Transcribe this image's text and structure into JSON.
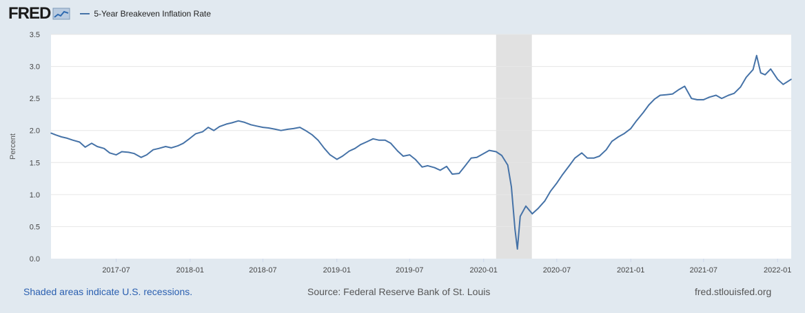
{
  "header": {
    "logo_text": "FRED",
    "logo_mark_icon": "sparkline-chart-icon",
    "legend_label": "5-Year Breakeven Inflation Rate"
  },
  "footer": {
    "recession_note": "Shaded areas indicate U.S. recessions.",
    "source": "Source: Federal Reserve Bank of St. Louis",
    "site": "fred.stlouisfed.org"
  },
  "colors": {
    "series": "#4572a7",
    "recession_band": "#e1e1e1",
    "background": "#e1e9f0",
    "plot_background": "#ffffff",
    "grid": "#e6e6e6"
  },
  "chart_data": {
    "type": "line",
    "ylabel": "Percent",
    "ylim": [
      0,
      3.5
    ],
    "yticks": [
      "0.0",
      "0.5",
      "1.0",
      "1.5",
      "2.0",
      "2.5",
      "3.0",
      "3.5"
    ],
    "xlim": [
      "2017-01-20",
      "2022-02-04"
    ],
    "xticks": [
      "2017-07",
      "2018-01",
      "2018-07",
      "2019-01",
      "2019-07",
      "2020-01",
      "2020-07",
      "2021-01",
      "2021-07",
      "2022-01"
    ],
    "grid": true,
    "recessions": [
      {
        "start": "2020-02-01",
        "end": "2020-04-30"
      }
    ],
    "series": [
      {
        "name": "5-Year Breakeven Inflation Rate",
        "x": [
          "2017-01-20",
          "2017-02-01",
          "2017-02-15",
          "2017-03-01",
          "2017-03-15",
          "2017-04-01",
          "2017-04-15",
          "2017-05-01",
          "2017-05-15",
          "2017-06-01",
          "2017-06-15",
          "2017-07-01",
          "2017-07-15",
          "2017-08-01",
          "2017-08-15",
          "2017-09-01",
          "2017-09-15",
          "2017-10-01",
          "2017-10-15",
          "2017-11-01",
          "2017-11-15",
          "2017-12-01",
          "2017-12-15",
          "2018-01-01",
          "2018-01-15",
          "2018-02-01",
          "2018-02-15",
          "2018-03-01",
          "2018-03-15",
          "2018-04-01",
          "2018-04-15",
          "2018-05-01",
          "2018-05-15",
          "2018-06-01",
          "2018-06-15",
          "2018-07-01",
          "2018-07-15",
          "2018-08-01",
          "2018-08-15",
          "2018-09-01",
          "2018-09-15",
          "2018-10-01",
          "2018-10-15",
          "2018-11-01",
          "2018-11-15",
          "2018-12-01",
          "2018-12-15",
          "2019-01-01",
          "2019-01-15",
          "2019-02-01",
          "2019-02-15",
          "2019-03-01",
          "2019-03-15",
          "2019-04-01",
          "2019-04-15",
          "2019-05-01",
          "2019-05-15",
          "2019-06-01",
          "2019-06-15",
          "2019-07-01",
          "2019-07-15",
          "2019-08-01",
          "2019-08-15",
          "2019-09-01",
          "2019-09-15",
          "2019-10-01",
          "2019-10-15",
          "2019-11-01",
          "2019-11-15",
          "2019-12-01",
          "2019-12-15",
          "2020-01-01",
          "2020-01-15",
          "2020-02-01",
          "2020-02-15",
          "2020-03-01",
          "2020-03-10",
          "2020-03-19",
          "2020-03-25",
          "2020-04-01",
          "2020-04-15",
          "2020-05-01",
          "2020-05-15",
          "2020-06-01",
          "2020-06-15",
          "2020-07-01",
          "2020-07-15",
          "2020-08-01",
          "2020-08-15",
          "2020-09-01",
          "2020-09-15",
          "2020-10-01",
          "2020-10-15",
          "2020-11-01",
          "2020-11-15",
          "2020-12-01",
          "2020-12-15",
          "2021-01-01",
          "2021-01-15",
          "2021-02-01",
          "2021-02-15",
          "2021-03-01",
          "2021-03-15",
          "2021-04-01",
          "2021-04-15",
          "2021-05-01",
          "2021-05-15",
          "2021-06-01",
          "2021-06-15",
          "2021-07-01",
          "2021-07-15",
          "2021-08-01",
          "2021-08-15",
          "2021-09-01",
          "2021-09-15",
          "2021-10-01",
          "2021-10-15",
          "2021-11-01",
          "2021-11-10",
          "2021-11-20",
          "2021-12-01",
          "2021-12-15",
          "2022-01-01",
          "2022-01-15",
          "2022-02-04"
        ],
        "y": [
          1.96,
          1.93,
          1.9,
          1.88,
          1.85,
          1.82,
          1.74,
          1.8,
          1.75,
          1.72,
          1.65,
          1.62,
          1.67,
          1.66,
          1.64,
          1.58,
          1.62,
          1.7,
          1.72,
          1.75,
          1.73,
          1.76,
          1.8,
          1.88,
          1.95,
          1.98,
          2.05,
          2.0,
          2.06,
          2.1,
          2.12,
          2.15,
          2.13,
          2.09,
          2.07,
          2.05,
          2.04,
          2.02,
          2.0,
          2.02,
          2.03,
          2.05,
          2.0,
          1.93,
          1.85,
          1.72,
          1.62,
          1.55,
          1.6,
          1.68,
          1.72,
          1.78,
          1.82,
          1.87,
          1.85,
          1.85,
          1.8,
          1.68,
          1.6,
          1.62,
          1.55,
          1.43,
          1.45,
          1.42,
          1.38,
          1.44,
          1.32,
          1.33,
          1.44,
          1.57,
          1.58,
          1.64,
          1.69,
          1.67,
          1.61,
          1.46,
          1.12,
          0.46,
          0.15,
          0.66,
          0.82,
          0.7,
          0.78,
          0.9,
          1.05,
          1.18,
          1.31,
          1.45,
          1.57,
          1.65,
          1.57,
          1.57,
          1.6,
          1.7,
          1.83,
          1.9,
          1.95,
          2.03,
          2.15,
          2.28,
          2.4,
          2.49,
          2.55,
          2.56,
          2.57,
          2.64,
          2.69,
          2.5,
          2.48,
          2.48,
          2.52,
          2.55,
          2.5,
          2.55,
          2.58,
          2.68,
          2.83,
          2.95,
          3.17,
          2.9,
          2.87,
          2.96,
          2.8,
          2.72,
          2.8
        ]
      }
    ]
  }
}
